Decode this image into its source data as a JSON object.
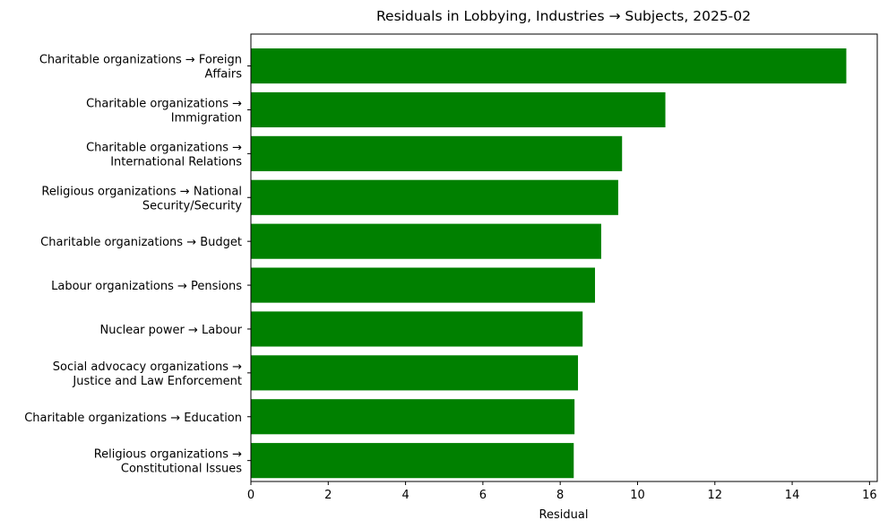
{
  "chart_data": {
    "type": "bar",
    "orientation": "horizontal",
    "title": "Residuals in Lobbying, Industries → Subjects, 2025-02",
    "xlabel": "Residual",
    "ylabel": "",
    "xlim": [
      0,
      16.2
    ],
    "xticks": [
      0,
      2,
      4,
      6,
      8,
      10,
      12,
      14,
      16
    ],
    "grid": false,
    "bar_color": "#008000",
    "categories": [
      [
        "Charitable organizations → Foreign",
        "Affairs"
      ],
      [
        "Charitable organizations →",
        "Immigration"
      ],
      [
        "Charitable organizations →",
        "International Relations"
      ],
      [
        "Religious organizations → National",
        "Security/Security"
      ],
      [
        "Charitable organizations → Budget"
      ],
      [
        "Labour organizations → Pensions"
      ],
      [
        "Nuclear power → Labour"
      ],
      [
        "Social advocacy organizations →",
        "Justice and Law Enforcement"
      ],
      [
        "Charitable organizations → Education"
      ],
      [
        "Religious organizations →",
        "Constitutional Issues"
      ]
    ],
    "values": [
      15.4,
      10.72,
      9.6,
      9.5,
      9.06,
      8.9,
      8.58,
      8.46,
      8.37,
      8.35
    ]
  }
}
